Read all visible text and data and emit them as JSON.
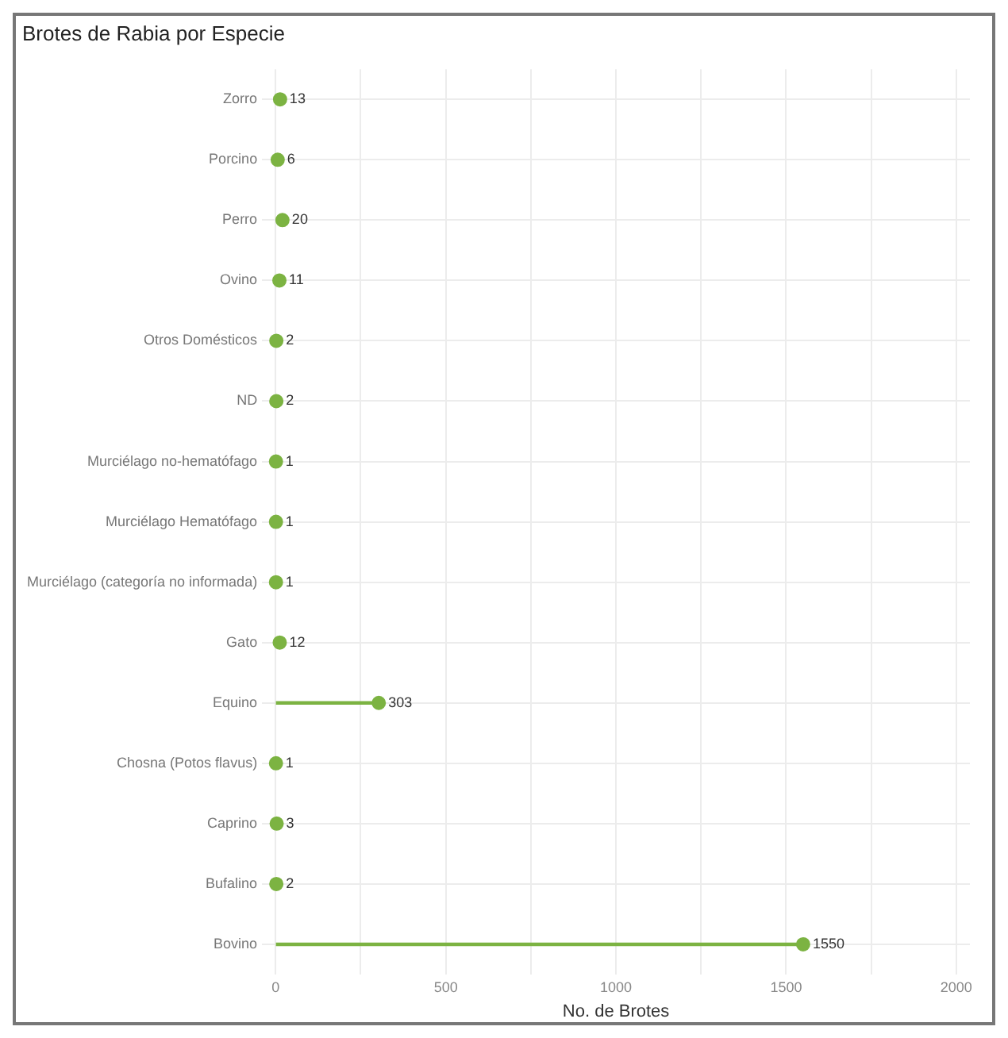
{
  "chart_data": {
    "type": "lollipop",
    "orientation": "horizontal",
    "title": "Brotes de Rabia por Especie",
    "xlabel": "No. de Brotes",
    "categories": [
      "Zorro",
      "Porcino",
      "Perro",
      "Ovino",
      "Otros Domésticos",
      "ND",
      "Murciélago no-hematófago",
      "Murciélago Hematófago",
      "Murciélago (categoría no informada)",
      "Gato",
      "Equino",
      "Chosna (Potos flavus)",
      "Caprino",
      "Bufalino",
      "Bovino"
    ],
    "values": [
      13,
      6,
      20,
      11,
      2,
      2,
      1,
      1,
      1,
      12,
      303,
      1,
      3,
      2,
      1550
    ],
    "color": "#7cb342",
    "xlim": [
      -40,
      2040
    ],
    "xticks": [
      0,
      {
        "value": 250,
        "label": null
      },
      500,
      {
        "value": 750,
        "label": null
      },
      1000,
      {
        "value": 1250,
        "label": null
      },
      1500,
      {
        "value": 1750,
        "label": null
      },
      2000
    ],
    "grid": true,
    "data_labels": true,
    "marker": "circle"
  }
}
